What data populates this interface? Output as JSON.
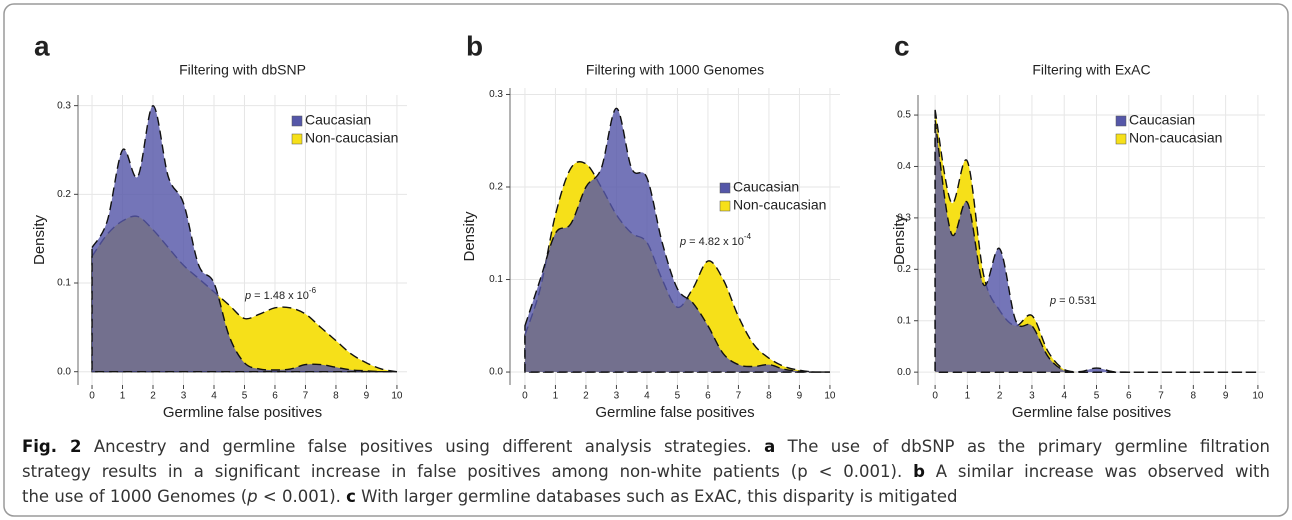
{
  "chart_data": [
    {
      "type": "area",
      "panel": "a",
      "title": "Filtering with dbSNP",
      "x_label": "Germline false positives",
      "y_label": "Density",
      "annotation": {
        "variable": "p",
        "text": " = 1.48 x 10",
        "exponent": "-6"
      },
      "x": [
        0,
        0.5,
        1,
        1.5,
        2,
        2.5,
        3,
        3.5,
        4,
        4.5,
        5,
        5.5,
        6,
        6.5,
        7,
        7.5,
        8,
        8.5,
        9,
        9.5,
        10
      ],
      "series": [
        {
          "name": "Non-caucasian",
          "color": "#f6e019",
          "values": [
            0.13,
            0.155,
            0.17,
            0.175,
            0.16,
            0.14,
            0.12,
            0.105,
            0.09,
            0.075,
            0.06,
            0.065,
            0.072,
            0.072,
            0.065,
            0.05,
            0.035,
            0.02,
            0.01,
            0.003,
            0
          ]
        },
        {
          "name": "Caucasian",
          "color": "#5557a8",
          "values": [
            0.14,
            0.17,
            0.25,
            0.22,
            0.3,
            0.22,
            0.19,
            0.12,
            0.1,
            0.04,
            0.01,
            0.003,
            0.002,
            0.003,
            0.008,
            0.008,
            0.005,
            0.002,
            0.001,
            0,
            0
          ]
        }
      ],
      "xlim": [
        -0.46,
        10.33
      ],
      "ylim": [
        -0.015,
        0.312
      ],
      "xticks": [
        0,
        1,
        2,
        3,
        4,
        5,
        6,
        7,
        8,
        9,
        10
      ],
      "yticks": [
        {
          "value": 0,
          "label": "0.0"
        },
        0.1,
        0.2,
        0.3
      ],
      "grid": true,
      "legend": "top-right"
    },
    {
      "type": "area",
      "panel": "b",
      "title": "Filtering with 1000 Genomes",
      "x_label": "Germline false positives",
      "y_label": "Density",
      "annotation": {
        "variable": "p",
        "text": " = 4.82 x 10",
        "exponent": "-4"
      },
      "x": [
        0,
        0.5,
        1,
        1.5,
        2,
        2.5,
        3,
        3.5,
        4,
        4.5,
        5,
        5.5,
        6,
        6.5,
        7,
        7.5,
        8,
        8.5,
        9,
        9.5,
        10
      ],
      "series": [
        {
          "name": "Non-caucasian",
          "color": "#f6e019",
          "values": [
            0.04,
            0.09,
            0.17,
            0.22,
            0.225,
            0.2,
            0.17,
            0.15,
            0.14,
            0.1,
            0.07,
            0.09,
            0.12,
            0.1,
            0.06,
            0.03,
            0.015,
            0.006,
            0.002,
            0,
            0
          ]
        },
        {
          "name": "Caucasian",
          "color": "#5557a8",
          "values": [
            0.05,
            0.1,
            0.15,
            0.16,
            0.2,
            0.22,
            0.285,
            0.22,
            0.21,
            0.14,
            0.09,
            0.075,
            0.05,
            0.02,
            0.008,
            0.006,
            0.008,
            0.003,
            0.001,
            0,
            0
          ]
        }
      ],
      "xlim": [
        -0.49,
        10.33
      ],
      "ylim": [
        -0.014,
        0.307
      ],
      "xticks": [
        0,
        1,
        2,
        3,
        4,
        5,
        6,
        7,
        8,
        9,
        10
      ],
      "yticks": [
        {
          "value": 0,
          "label": "0.0"
        },
        0.1,
        0.2,
        0.3
      ],
      "grid": true,
      "legend": "top-right"
    },
    {
      "type": "area",
      "panel": "c",
      "title": "Filtering with ExAC",
      "x_label": "Germline false positives",
      "y_label": "Density",
      "annotation": {
        "variable": "p",
        "text": " = 0.531"
      },
      "x": [
        0,
        0.5,
        1,
        1.5,
        2,
        2.5,
        3,
        3.5,
        4,
        4.5,
        5,
        5.5,
        6,
        6.5,
        7,
        7.5,
        8,
        8.5,
        9,
        9.5,
        10
      ],
      "series": [
        {
          "name": "Non-caucasian",
          "color": "#f6e019",
          "values": [
            0.51,
            0.33,
            0.41,
            0.19,
            0.12,
            0.09,
            0.11,
            0.04,
            0.005,
            0,
            0,
            0,
            0,
            0,
            0,
            0,
            0,
            0,
            0,
            0,
            0
          ]
        },
        {
          "name": "Caucasian",
          "color": "#5557a8",
          "values": [
            0.49,
            0.27,
            0.33,
            0.17,
            0.24,
            0.1,
            0.09,
            0.03,
            0.003,
            0.001,
            0.008,
            0.001,
            0,
            0,
            0,
            0,
            0,
            0,
            0,
            0,
            0
          ]
        }
      ],
      "xlim": [
        -0.53,
        10.22
      ],
      "ylim": [
        -0.025,
        0.539
      ],
      "xticks": [
        0,
        1,
        2,
        3,
        4,
        5,
        6,
        7,
        8,
        9,
        10
      ],
      "yticks": [
        {
          "value": 0,
          "label": "0.0"
        },
        0.1,
        0.2,
        0.3,
        0.4,
        0.5
      ],
      "grid": true,
      "legend": "top-right"
    }
  ],
  "caption": {
    "lines": [
      [
        "Fig. 2",
        " Ancestry and germline false positives using different analysis strategies. ",
        "a",
        " The use of dbSNP as the primary germline filtration"
      ],
      [
        "strategy results in a significant increase in false positives among non-white patients (p < 0.001). ",
        "b",
        " A similar increase was observed with"
      ],
      [
        "the use of 1000 Genomes (",
        "p",
        " < 0.001). ",
        "c",
        " With larger germline databases such as ExAC, this disparity is mitigated"
      ]
    ]
  }
}
